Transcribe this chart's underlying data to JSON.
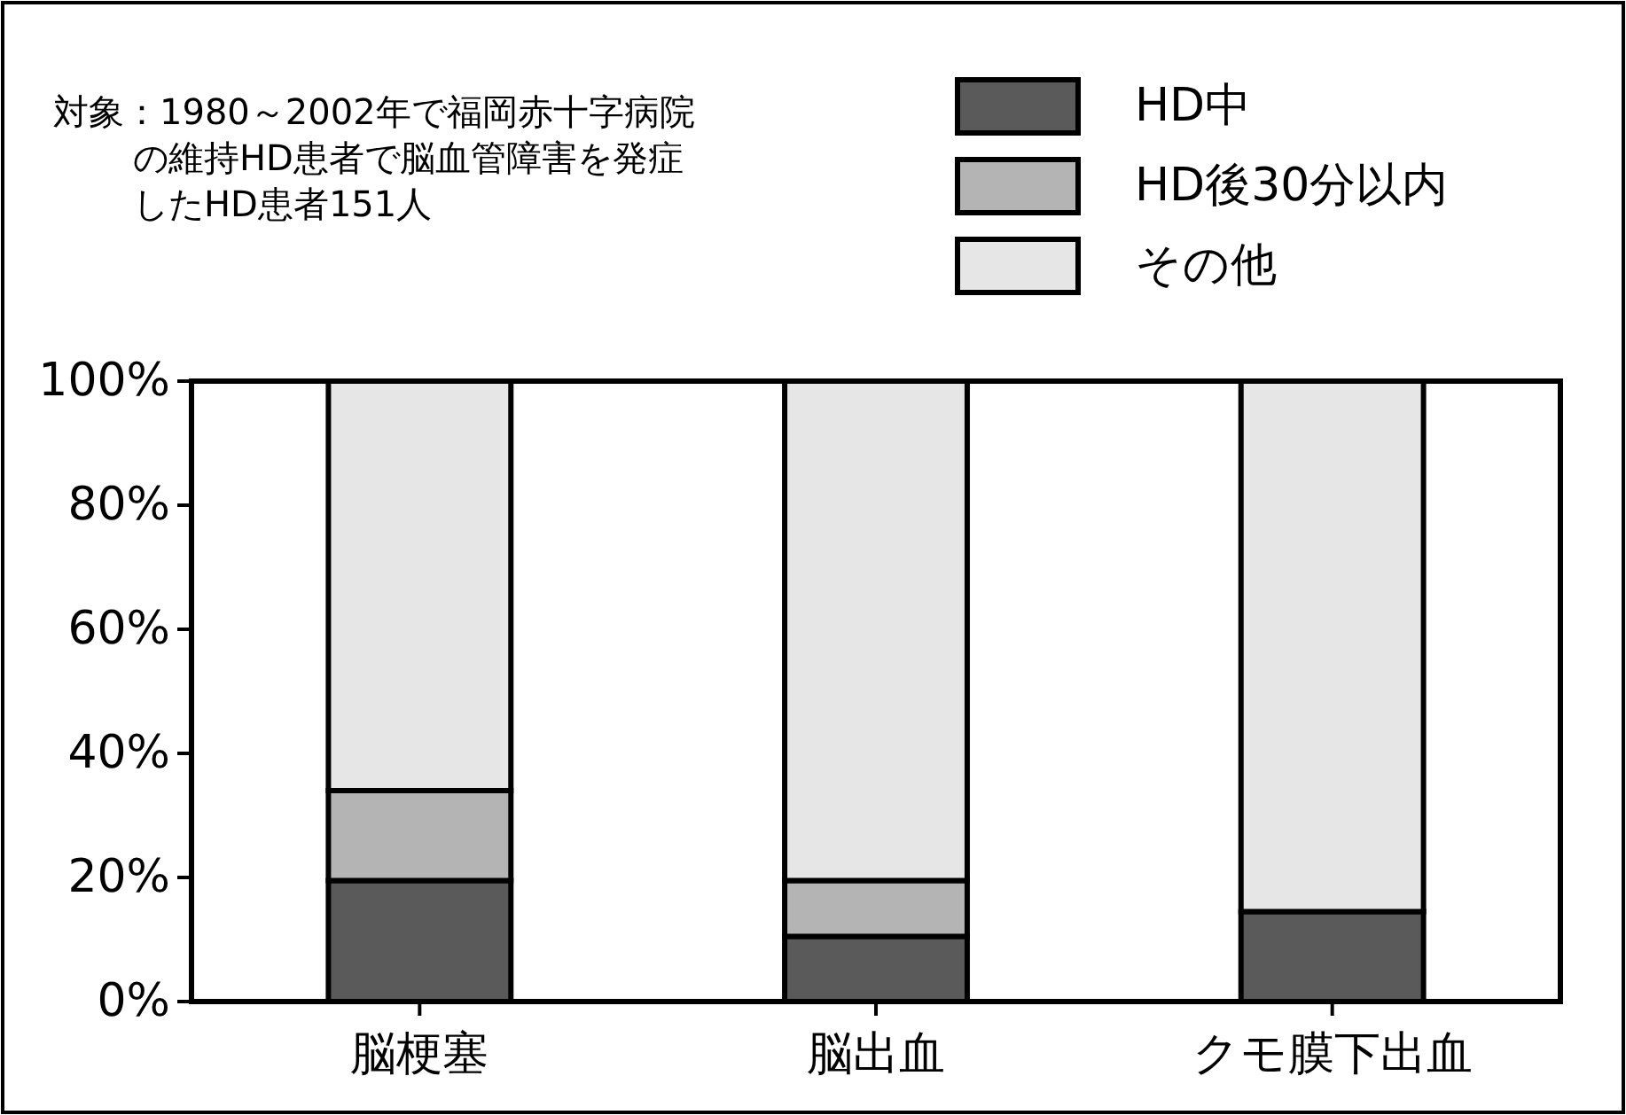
{
  "chart_data": {
    "type": "bar",
    "stacked": true,
    "categories": [
      "脳梗塞",
      "脳出血",
      "クモ膜下出血"
    ],
    "series": [
      {
        "name": "HD中",
        "color": "#5a5a5a",
        "values": [
          19.5,
          10.5,
          14.5
        ]
      },
      {
        "name": "HD後30分以内",
        "color": "#b4b4b4",
        "values": [
          14.5,
          9,
          0
        ]
      },
      {
        "name": "その他",
        "color": "#e6e6e6",
        "values": [
          66,
          80.5,
          85.5
        ]
      }
    ],
    "ylim": [
      0,
      100
    ],
    "yticks": [
      {
        "value": 0,
        "label": "0%"
      },
      {
        "value": 20,
        "label": "20%"
      },
      {
        "value": 40,
        "label": "40%"
      },
      {
        "value": 60,
        "label": "60%"
      },
      {
        "value": 80,
        "label": "80%"
      },
      {
        "value": 100,
        "label": "100%"
      }
    ],
    "legend": "top right",
    "annotations": [
      "対象：1980～2002年で福岡赤十字病院",
      "の維持HD患者で脳血管障害を発症",
      "したHD患者151人"
    ]
  }
}
